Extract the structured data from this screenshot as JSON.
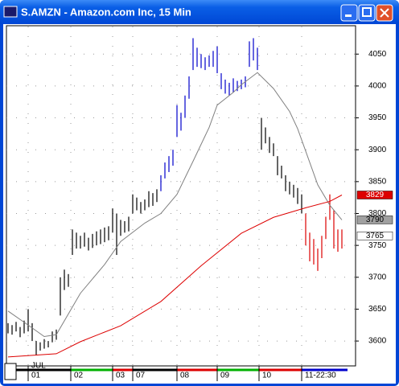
{
  "chart_data": {
    "type": "ohlc",
    "title": "S.AMZN - Amazon.com Inc, 15 Min",
    "x_annotation": "JUL",
    "xlim": [
      -0.4,
      86
    ],
    "xticks": [
      {
        "value": 5,
        "label": "01"
      },
      {
        "value": 15.6,
        "label": "02"
      },
      {
        "value": 26,
        "label": "03"
      },
      {
        "value": 31,
        "label": "07"
      },
      {
        "value": 42,
        "label": "08"
      },
      {
        "value": 52,
        "label": "09"
      },
      {
        "value": 62.4,
        "label": "10"
      },
      {
        "value": 73,
        "label": "11-22:30"
      }
    ],
    "ylim": [
      3561,
      4097
    ],
    "yticks": [
      3600,
      3650,
      3700,
      3750,
      3800,
      3850,
      3900,
      3950,
      4000,
      4050
    ],
    "grid": true,
    "series": [
      {
        "color": "#000000",
        "x": [
          0,
          1,
          2,
          3,
          4,
          5,
          6,
          7,
          8,
          9,
          10,
          11,
          12,
          13,
          14,
          15,
          16,
          17,
          18,
          19,
          20,
          21,
          22,
          23,
          24,
          25,
          26,
          27,
          28,
          29,
          30,
          31,
          32,
          33,
          34,
          35,
          36,
          37
        ],
        "high": [
          3628,
          3625,
          3630,
          3622,
          3632,
          3650,
          3628,
          3600,
          3598,
          3603,
          3600,
          3615,
          3618,
          3700,
          3712,
          3705,
          3775,
          3770,
          3765,
          3770,
          3762,
          3768,
          3772,
          3775,
          3778,
          3780,
          3808,
          3800,
          3790,
          3788,
          3795,
          3830,
          3825,
          3818,
          3822,
          3835,
          3832,
          3838
        ],
        "low": [
          3612,
          3610,
          3615,
          3606,
          3612,
          3615,
          3600,
          3578,
          3585,
          3588,
          3590,
          3598,
          3602,
          3640,
          3680,
          3685,
          3735,
          3745,
          3745,
          3748,
          3742,
          3746,
          3750,
          3752,
          3755,
          3758,
          3770,
          3735,
          3765,
          3770,
          3772,
          3800,
          3805,
          3800,
          3805,
          3810,
          3812,
          3818
        ]
      },
      {
        "color": "#0000cc",
        "x": [
          38,
          39,
          40,
          41,
          42,
          43,
          44,
          45,
          46,
          47,
          48,
          49,
          50,
          51,
          52,
          53,
          54,
          55,
          56,
          57,
          58,
          59,
          60,
          61,
          62
        ],
        "high": [
          3860,
          3880,
          3890,
          3900,
          3970,
          3958,
          3985,
          4015,
          4075,
          4060,
          4050,
          4045,
          4048,
          4055,
          4062,
          4020,
          4010,
          4005,
          4012,
          4008,
          4010,
          4015,
          4070,
          4075,
          4060
        ],
        "low": [
          3835,
          3855,
          3865,
          3875,
          3920,
          3930,
          3950,
          3980,
          4025,
          4030,
          4028,
          4025,
          4030,
          4030,
          4020,
          3995,
          3988,
          3985,
          3990,
          3992,
          3995,
          3998,
          4030,
          4040,
          4025
        ]
      },
      {
        "color": "#000000",
        "x": [
          63,
          64,
          65,
          66,
          67,
          68,
          69,
          70,
          71,
          72,
          73
        ],
        "high": [
          3950,
          3935,
          3920,
          3910,
          3890,
          3875,
          3860,
          3850,
          3845,
          3840,
          3830
        ],
        "low": [
          3900,
          3910,
          3895,
          3890,
          3860,
          3855,
          3835,
          3830,
          3825,
          3815,
          3800
        ]
      },
      {
        "color": "#dd0000",
        "x": [
          74,
          75,
          76,
          77,
          78,
          79,
          80,
          81,
          82,
          83
        ],
        "high": [
          3800,
          3770,
          3760,
          3745,
          3765,
          3795,
          3830,
          3805,
          3775,
          3775
        ],
        "low": [
          3750,
          3725,
          3720,
          3710,
          3730,
          3760,
          3790,
          3745,
          3740,
          3745
        ]
      }
    ],
    "lines": [
      {
        "color": "#808080",
        "x": [
          0,
          5,
          9,
          12,
          18,
          24,
          28,
          34,
          38,
          42,
          46,
          50,
          52,
          56,
          58,
          62,
          66,
          70,
          72,
          77,
          80,
          83
        ],
        "values": [
          3647,
          3625,
          3607,
          3610,
          3675,
          3720,
          3756,
          3785,
          3800,
          3830,
          3882,
          3935,
          3970,
          3990,
          4002,
          4021,
          3996,
          3960,
          3933,
          3845,
          3813,
          3790
        ]
      },
      {
        "color": "#dd0000",
        "x": [
          0,
          12,
          18,
          28,
          38,
          48,
          58,
          66,
          74,
          80,
          83
        ],
        "values": [
          3575,
          3580,
          3599,
          3624,
          3662,
          3718,
          3769,
          3794,
          3809,
          3819,
          3829
        ]
      }
    ],
    "price_tags": [
      {
        "value": 3829,
        "color": "#dd0000",
        "text_color": "#ffffff"
      },
      {
        "value": 3790,
        "color": "#a0a0a0",
        "text_color": "#000000"
      },
      {
        "value": 3765,
        "color": "#ffffff",
        "text_color": "#000000"
      }
    ]
  }
}
